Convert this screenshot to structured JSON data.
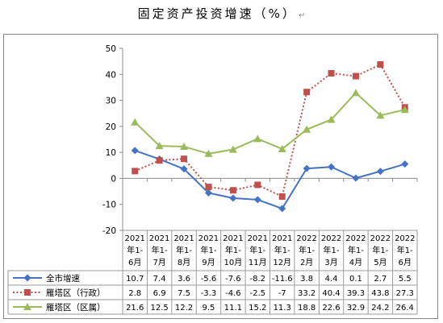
{
  "title": "固定资产投资增速（%）",
  "title_mark": "↵",
  "chart_data": {
    "type": "line",
    "title": "固定资产投资增速（%）",
    "categories": [
      [
        "2021",
        "年1-",
        "6月"
      ],
      [
        "2021",
        "年1-",
        "7月"
      ],
      [
        "2021",
        "年1-",
        "8月"
      ],
      [
        "2021",
        "年1-",
        "9月"
      ],
      [
        "2021",
        "年1-",
        "10月"
      ],
      [
        "2021",
        "年1-",
        "11月"
      ],
      [
        "2021",
        "年1-",
        "12月"
      ],
      [
        "2022",
        "年1-",
        "2月"
      ],
      [
        "2022",
        "年1-",
        "3月"
      ],
      [
        "2022",
        "年1-",
        "4月"
      ],
      [
        "2022",
        "年1-",
        "5月"
      ],
      [
        "2022",
        "年1-",
        "6月"
      ]
    ],
    "ylim": [
      -20,
      50
    ],
    "yticks": [
      -20,
      -10,
      0,
      10,
      20,
      30,
      40,
      50
    ],
    "grid": false,
    "legend": "data-table",
    "series": [
      {
        "name": "全市增速",
        "color": "#4472c4",
        "marker": "diamond",
        "line": "solid",
        "values": [
          10.7,
          7.4,
          3.6,
          -5.6,
          -7.6,
          -8.2,
          -11.6,
          3.8,
          4.4,
          0.1,
          2.7,
          5.5
        ]
      },
      {
        "name": "雁塔区（行政）",
        "color": "#c0504d",
        "marker": "square",
        "line": "dotted",
        "values": [
          2.8,
          6.9,
          7.5,
          -3.3,
          -4.6,
          -2.5,
          -7,
          33.2,
          40.4,
          39.3,
          43.8,
          27.3
        ]
      },
      {
        "name": "雁塔区（区属）",
        "color": "#9bbb59",
        "marker": "triangle",
        "line": "solid",
        "values": [
          21.6,
          12.5,
          12.2,
          9.5,
          11.1,
          15.2,
          11.3,
          18.8,
          22.6,
          32.9,
          24.2,
          26.4
        ]
      }
    ]
  }
}
